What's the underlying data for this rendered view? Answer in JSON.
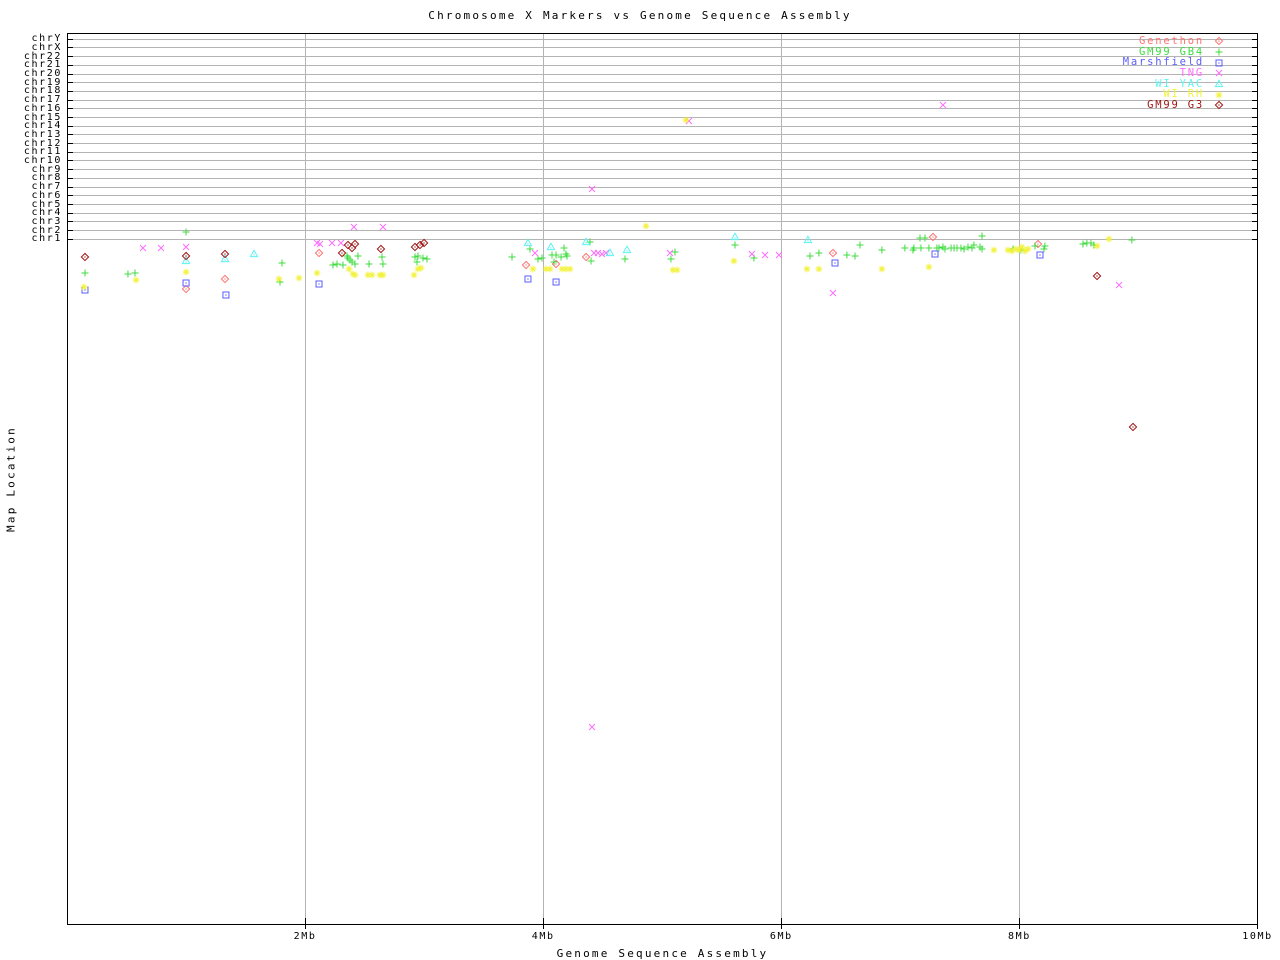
{
  "title": "Chromosome X Markers vs Genome Sequence Assembly",
  "axes": {
    "x": {
      "label": "Genome Sequence Assembly",
      "unit": "Mb",
      "range_mb": [
        0,
        10
      ],
      "ticks": [
        {
          "label": "2Mb",
          "value_mb": 2
        },
        {
          "label": "4Mb",
          "value_mb": 4
        },
        {
          "label": "6Mb",
          "value_mb": 6
        },
        {
          "label": "8Mb",
          "value_mb": 8
        },
        {
          "label": "10Mb",
          "value_mb": 10
        }
      ]
    },
    "y": {
      "label": "Map Location",
      "categories": [
        "chrY",
        "chrX",
        "chr22",
        "chr21",
        "chr20",
        "chr19",
        "chr18",
        "chr17",
        "chr16",
        "chr15",
        "chr14",
        "chr13",
        "chr12",
        "chr11",
        "chr10",
        "chr9",
        "chr8",
        "chr7",
        "chr6",
        "chr5",
        "chr4",
        "chr3",
        "chr2",
        "chr1"
      ]
    }
  },
  "chart_data": {
    "type": "scatter",
    "title": "Chromosome X Markers vs Genome Sequence Assembly",
    "xlabel": "Genome Sequence Assembly",
    "ylabel": "Map Location",
    "x_unit": "Mb",
    "x_range": [
      0,
      10
    ],
    "grid": {
      "vertical_gridlines_mb": [
        2,
        4,
        6,
        8
      ],
      "horizontal_band_lines": 24
    },
    "legend_position": "top-right",
    "y_axis_note": "y values are vertical screen positions (px, 33 = plot top, 925 = plot bottom); thin horizontal band lines from top to bottom mark chromosome rows chrY..chr1, most markers lie in the chr1 region below the last band line",
    "series": [
      {
        "name": "Genethon",
        "color": "#ff7272",
        "symbol": "open-diamond-dot",
        "points": [
          [
            1.0,
            289
          ],
          [
            1.327,
            279
          ],
          [
            2.117,
            253
          ],
          [
            3.856,
            265
          ],
          [
            4.108,
            264
          ],
          [
            4.36,
            257
          ],
          [
            6.434,
            253
          ],
          [
            7.274,
            237
          ],
          [
            8.156,
            244
          ]
        ]
      },
      {
        "name": "GM99 GB4",
        "color": "#3edc3e",
        "symbol": "plus",
        "points": [
          [
            0.151,
            273
          ],
          [
            0.512,
            274
          ],
          [
            0.571,
            273
          ],
          [
            1.0,
            232
          ],
          [
            1.789,
            282
          ],
          [
            1.806,
            263
          ],
          [
            2.234,
            265
          ],
          [
            2.268,
            264
          ],
          [
            2.318,
            265
          ],
          [
            2.352,
            256
          ],
          [
            2.36,
            258
          ],
          [
            2.377,
            260
          ],
          [
            2.394,
            262
          ],
          [
            2.419,
            264
          ],
          [
            2.444,
            256
          ],
          [
            2.537,
            264
          ],
          [
            2.646,
            257
          ],
          [
            2.654,
            264
          ],
          [
            2.923,
            257
          ],
          [
            2.94,
            262
          ],
          [
            2.948,
            256
          ],
          [
            2.99,
            258
          ],
          [
            3.024,
            259
          ],
          [
            3.738,
            257
          ],
          [
            3.889,
            249
          ],
          [
            3.956,
            259
          ],
          [
            3.99,
            258
          ],
          [
            4.074,
            255
          ],
          [
            4.091,
            262
          ],
          [
            4.108,
            255
          ],
          [
            4.15,
            257
          ],
          [
            4.175,
            248
          ],
          [
            4.191,
            254
          ],
          [
            4.2,
            256
          ],
          [
            4.393,
            242
          ],
          [
            4.402,
            261
          ],
          [
            4.687,
            259
          ],
          [
            5.073,
            259
          ],
          [
            5.107,
            252
          ],
          [
            5.611,
            245
          ],
          [
            5.77,
            258
          ],
          [
            6.241,
            256
          ],
          [
            6.316,
            253
          ],
          [
            6.551,
            255
          ],
          [
            6.619,
            256
          ],
          [
            6.661,
            245
          ],
          [
            6.845,
            250
          ],
          [
            7.038,
            248
          ],
          [
            7.106,
            250
          ],
          [
            7.114,
            248
          ],
          [
            7.165,
            238
          ],
          [
            7.173,
            248
          ],
          [
            7.207,
            238
          ],
          [
            7.24,
            248
          ],
          [
            7.307,
            248
          ],
          [
            7.324,
            248
          ],
          [
            7.358,
            247
          ],
          [
            7.375,
            249
          ],
          [
            7.426,
            248
          ],
          [
            7.451,
            248
          ],
          [
            7.476,
            248
          ],
          [
            7.509,
            248
          ],
          [
            7.535,
            249
          ],
          [
            7.568,
            247
          ],
          [
            7.602,
            248
          ],
          [
            7.618,
            245
          ],
          [
            7.669,
            247
          ],
          [
            7.686,
            249
          ],
          [
            7.686,
            236
          ],
          [
            7.946,
            249
          ],
          [
            8.013,
            250
          ],
          [
            8.131,
            246
          ],
          [
            8.206,
            249
          ],
          [
            8.214,
            246
          ],
          [
            8.534,
            244
          ],
          [
            8.567,
            243
          ],
          [
            8.601,
            243
          ],
          [
            8.626,
            245
          ],
          [
            8.945,
            240
          ]
        ]
      },
      {
        "name": "Marshfield",
        "color": "#5c5cff",
        "symbol": "open-square-dot",
        "points": [
          [
            0.151,
            290
          ],
          [
            1.0,
            283
          ],
          [
            1.335,
            295
          ],
          [
            2.117,
            284
          ],
          [
            3.872,
            279
          ],
          [
            4.108,
            282
          ],
          [
            6.451,
            263
          ],
          [
            7.291,
            254
          ],
          [
            8.173,
            255
          ]
        ]
      },
      {
        "name": "TNG",
        "color": "#ff6cff",
        "symbol": "cross",
        "points": [
          [
            0.638,
            248
          ],
          [
            0.79,
            248
          ],
          [
            1.0,
            247
          ],
          [
            2.1,
            243
          ],
          [
            2.125,
            244
          ],
          [
            2.226,
            243
          ],
          [
            2.301,
            243
          ],
          [
            2.41,
            227
          ],
          [
            2.654,
            227
          ],
          [
            3.931,
            253
          ],
          [
            4.41,
            189
          ],
          [
            4.41,
            727
          ],
          [
            4.427,
            253
          ],
          [
            4.46,
            253
          ],
          [
            4.494,
            254
          ],
          [
            4.527,
            253
          ],
          [
            5.065,
            253
          ],
          [
            5.224,
            121
          ],
          [
            5.753,
            254
          ],
          [
            5.863,
            255
          ],
          [
            5.98,
            255
          ],
          [
            6.434,
            293
          ],
          [
            7.358,
            105
          ],
          [
            8.837,
            285
          ]
        ]
      },
      {
        "name": "WI YAC",
        "color": "#5ff2f2",
        "symbol": "open-triangle-dot",
        "points": [
          [
            1.0,
            261
          ],
          [
            1.327,
            259
          ],
          [
            1.571,
            254
          ],
          [
            3.872,
            243
          ],
          [
            4.065,
            247
          ],
          [
            4.36,
            242
          ],
          [
            4.561,
            253
          ],
          [
            4.704,
            250
          ],
          [
            5.611,
            237
          ],
          [
            6.224,
            240
          ]
        ]
      },
      {
        "name": "WI RH",
        "color": "#f2f23c",
        "symbol": "star-8",
        "points": [
          [
            0.143,
            287
          ],
          [
            0.58,
            280
          ],
          [
            1.0,
            272
          ],
          [
            1.781,
            279
          ],
          [
            1.949,
            278
          ],
          [
            2.1,
            273
          ],
          [
            2.369,
            269
          ],
          [
            2.402,
            274
          ],
          [
            2.419,
            275
          ],
          [
            2.528,
            275
          ],
          [
            2.562,
            275
          ],
          [
            2.629,
            275
          ],
          [
            2.654,
            275
          ],
          [
            2.915,
            275
          ],
          [
            2.948,
            269
          ],
          [
            2.973,
            268
          ],
          [
            3.914,
            269
          ],
          [
            4.024,
            269
          ],
          [
            4.057,
            269
          ],
          [
            4.158,
            269
          ],
          [
            4.191,
            269
          ],
          [
            4.225,
            269
          ],
          [
            4.863,
            226
          ],
          [
            5.09,
            270
          ],
          [
            5.124,
            270
          ],
          [
            5.199,
            120
          ],
          [
            5.602,
            261
          ],
          [
            6.215,
            269
          ],
          [
            6.316,
            269
          ],
          [
            6.845,
            269
          ],
          [
            7.24,
            267
          ],
          [
            7.786,
            250
          ],
          [
            7.904,
            250
          ],
          [
            7.937,
            251
          ],
          [
            7.971,
            249
          ],
          [
            7.996,
            250
          ],
          [
            8.021,
            247
          ],
          [
            8.046,
            251
          ],
          [
            8.072,
            249
          ],
          [
            8.652,
            246
          ],
          [
            8.753,
            239
          ]
        ]
      },
      {
        "name": "GM99 G3",
        "color": "#9e1212",
        "symbol": "open-diamond-dot",
        "points": [
          [
            0.151,
            257
          ],
          [
            1.0,
            256
          ],
          [
            1.327,
            254
          ],
          [
            2.31,
            253
          ],
          [
            2.36,
            245
          ],
          [
            2.394,
            248
          ],
          [
            2.419,
            244
          ],
          [
            2.637,
            249
          ],
          [
            2.923,
            247
          ],
          [
            2.965,
            245
          ],
          [
            2.999,
            243
          ],
          [
            8.652,
            276
          ],
          [
            8.954,
            427
          ]
        ]
      }
    ]
  }
}
